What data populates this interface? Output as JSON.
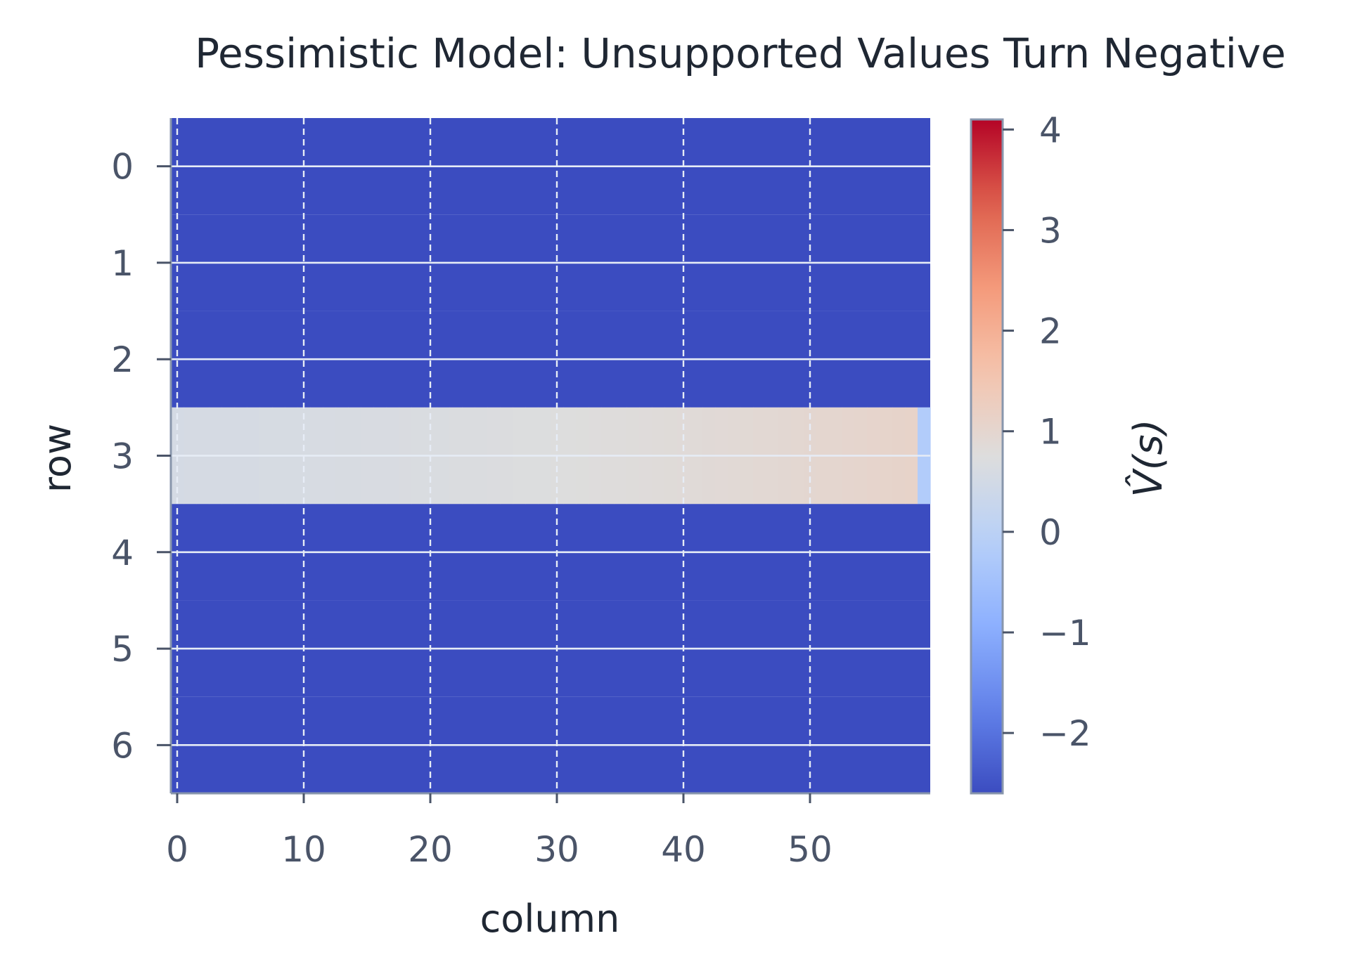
{
  "chart_data": {
    "type": "heatmap",
    "title": "Pessimistic Model: Unsupported Values Turn Negative",
    "xlabel": "column",
    "ylabel": "row",
    "colorbar_label": "V̂(s)",
    "n_rows": 7,
    "n_cols": 60,
    "x_ticks": [
      0,
      10,
      20,
      30,
      40,
      50
    ],
    "y_ticks": [
      0,
      1,
      2,
      3,
      4,
      5,
      6
    ],
    "colorbar_ticks": [
      4,
      3,
      2,
      1,
      0,
      -1,
      -2
    ],
    "color_range": [
      -2.6,
      4.1
    ],
    "colormap": "coolwarm",
    "grid": true,
    "background_value": -2.6,
    "supported_row": 3,
    "supported_row_values": [
      0.55,
      0.56,
      0.56,
      0.57,
      0.57,
      0.58,
      0.58,
      0.59,
      0.59,
      0.6,
      0.6,
      0.61,
      0.61,
      0.62,
      0.62,
      0.63,
      0.64,
      0.64,
      0.65,
      0.66,
      0.66,
      0.67,
      0.68,
      0.68,
      0.69,
      0.7,
      0.71,
      0.72,
      0.72,
      0.73,
      0.74,
      0.75,
      0.76,
      0.77,
      0.78,
      0.79,
      0.8,
      0.81,
      0.82,
      0.83,
      0.84,
      0.86,
      0.87,
      0.88,
      0.89,
      0.9,
      0.92,
      0.93,
      0.94,
      0.96,
      0.97,
      0.99,
      1.0,
      1.02,
      1.03,
      1.05,
      1.06,
      1.08,
      1.1,
      -0.2
    ],
    "tick_color": "#4a5468",
    "spine_color": "#8896ac"
  }
}
